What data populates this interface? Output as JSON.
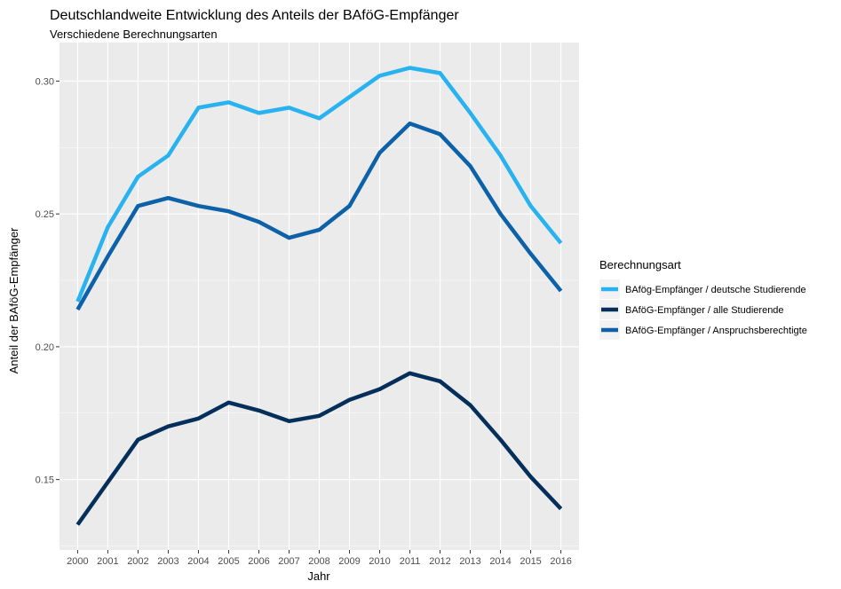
{
  "chart_data": {
    "type": "line",
    "title": "Deutschlandweite Entwicklung des Anteils der BAföG-Empfänger",
    "subtitle": "Verschiedene Berechnungsarten",
    "xlabel": "Jahr",
    "ylabel": "Anteil der BAföG-Empfänger",
    "x": [
      "2000",
      "2001",
      "2002",
      "2003",
      "2004",
      "2005",
      "2006",
      "2007",
      "2008",
      "2009",
      "2010",
      "2011",
      "2012",
      "2013",
      "2014",
      "2015",
      "2016"
    ],
    "yticks": [
      "0.15",
      "0.20",
      "0.25",
      "0.30"
    ],
    "ylim": [
      0.1235,
      0.3145
    ],
    "grid": true,
    "legend": {
      "title": "Berechnungsart",
      "position": "right"
    },
    "series": [
      {
        "name": "BAfög-Empfänger / deutsche Studierende",
        "color": "#29b2f0",
        "values": [
          0.217,
          0.245,
          0.264,
          0.272,
          0.29,
          0.292,
          0.288,
          0.29,
          0.286,
          0.294,
          0.302,
          0.305,
          0.303,
          0.288,
          0.272,
          0.253,
          0.239
        ]
      },
      {
        "name": "BAföG-Empfänger / alle Studierende",
        "color": "#052f5b",
        "values": [
          0.133,
          0.149,
          0.165,
          0.17,
          0.173,
          0.179,
          0.176,
          0.172,
          0.174,
          0.18,
          0.184,
          0.19,
          0.187,
          0.178,
          0.165,
          0.151,
          0.139
        ]
      },
      {
        "name": "BAföG-Empfänger / Anspruchsberechtigte",
        "color": "#0d61a8",
        "values": [
          0.214,
          0.234,
          0.253,
          0.256,
          0.253,
          0.251,
          0.247,
          0.241,
          0.244,
          0.253,
          0.273,
          0.284,
          0.28,
          0.268,
          0.25,
          0.235,
          0.221
        ]
      }
    ]
  }
}
